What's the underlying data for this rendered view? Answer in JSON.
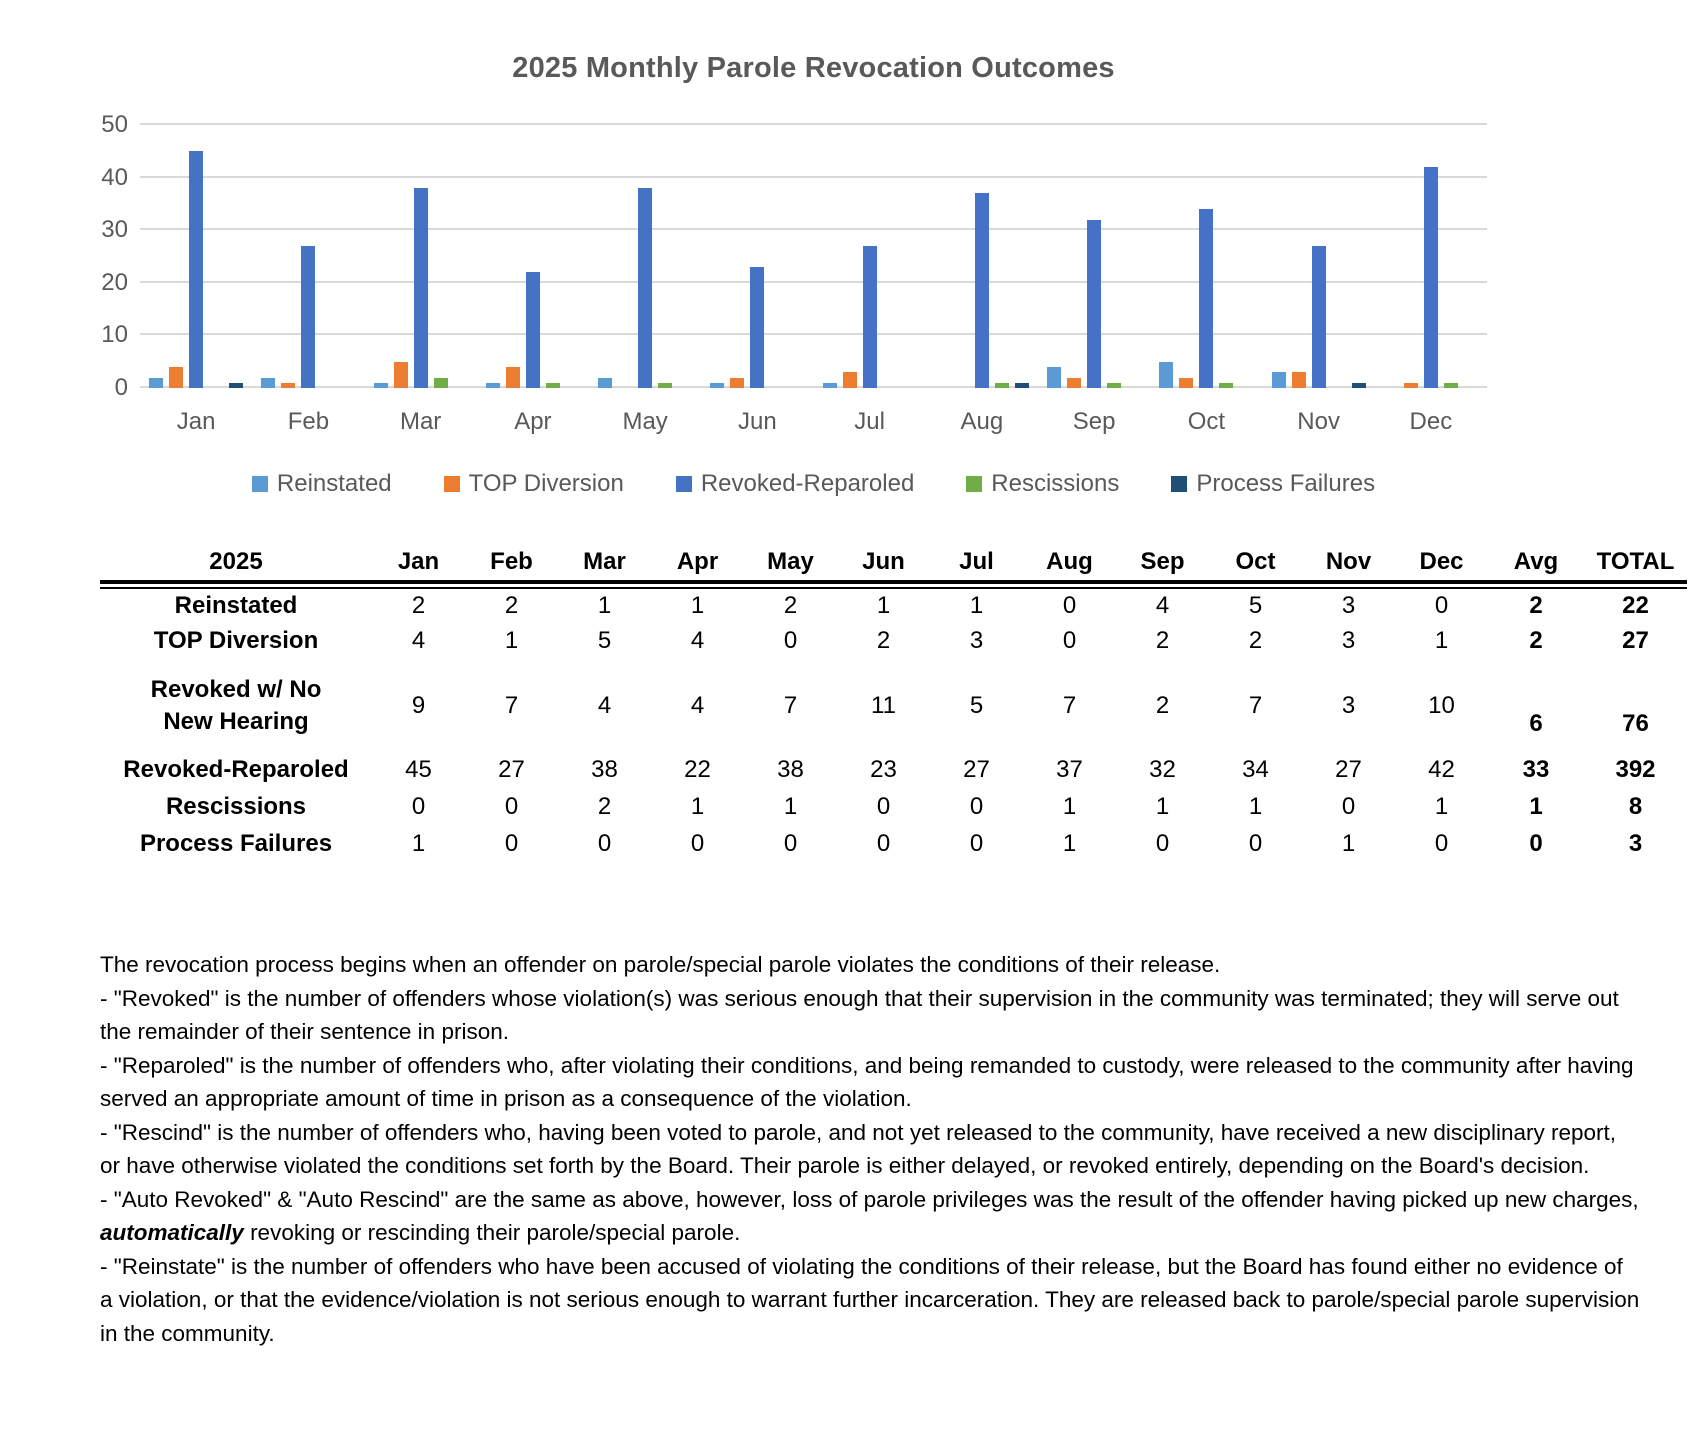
{
  "chart_data": {
    "type": "bar",
    "title": "2025 Monthly Parole Revocation Outcomes",
    "categories": [
      "Jan",
      "Feb",
      "Mar",
      "Apr",
      "May",
      "Jun",
      "Jul",
      "Aug",
      "Sep",
      "Oct",
      "Nov",
      "Dec"
    ],
    "series": [
      {
        "name": "Reinstated",
        "color": "#5B9BD5",
        "values": [
          2,
          2,
          1,
          1,
          2,
          1,
          1,
          0,
          4,
          5,
          3,
          0
        ]
      },
      {
        "name": "TOP Diversion",
        "color": "#ED7D31",
        "values": [
          4,
          1,
          5,
          4,
          0,
          2,
          3,
          0,
          2,
          2,
          3,
          1
        ]
      },
      {
        "name": "Revoked-Reparoled",
        "color": "#4472C4",
        "values": [
          45,
          27,
          38,
          22,
          38,
          23,
          27,
          37,
          32,
          34,
          27,
          42
        ]
      },
      {
        "name": "Rescissions",
        "color": "#70AD47",
        "values": [
          0,
          0,
          2,
          1,
          1,
          0,
          0,
          1,
          1,
          1,
          0,
          1
        ]
      },
      {
        "name": "Process Failures",
        "color": "#1F4E79",
        "values": [
          1,
          0,
          0,
          0,
          0,
          0,
          0,
          1,
          0,
          0,
          1,
          0
        ]
      }
    ],
    "ylim": [
      0,
      50
    ],
    "yticks": [
      0,
      10,
      20,
      30,
      40,
      50
    ],
    "grid": true,
    "legend_position": "bottom",
    "gridline_color": "#d9d9d9",
    "label_color": "#595959"
  },
  "table": {
    "year_header": "2025",
    "month_columns": [
      "Jan",
      "Feb",
      "Mar",
      "Apr",
      "May",
      "Jun",
      "Jul",
      "Aug",
      "Sep",
      "Oct",
      "Nov",
      "Dec"
    ],
    "avg_header": "Avg",
    "total_header": "TOTAL",
    "rows": [
      {
        "label": [
          "Reinstated"
        ],
        "values": [
          2,
          2,
          1,
          1,
          2,
          1,
          1,
          0,
          4,
          5,
          3,
          0
        ],
        "avg": 2,
        "total": 22
      },
      {
        "label": [
          "TOP Diversion"
        ],
        "values": [
          4,
          1,
          5,
          4,
          0,
          2,
          3,
          0,
          2,
          2,
          3,
          1
        ],
        "avg": 2,
        "total": 27
      },
      {
        "label": [
          "Revoked w/ No",
          "New Hearing"
        ],
        "values": [
          9,
          7,
          4,
          4,
          7,
          11,
          5,
          7,
          2,
          7,
          3,
          10
        ],
        "avg": 6,
        "total": 76
      },
      {
        "label": [
          "Revoked-Reparoled"
        ],
        "values": [
          45,
          27,
          38,
          22,
          38,
          23,
          27,
          37,
          32,
          34,
          27,
          42
        ],
        "avg": 33,
        "total": 392
      },
      {
        "label": [
          "Rescissions"
        ],
        "values": [
          0,
          0,
          2,
          1,
          1,
          0,
          0,
          1,
          1,
          1,
          0,
          1
        ],
        "avg": 1,
        "total": 8
      },
      {
        "label": [
          "Process Failures"
        ],
        "values": [
          1,
          0,
          0,
          0,
          0,
          0,
          0,
          1,
          0,
          0,
          1,
          0
        ],
        "avg": 0,
        "total": 3
      }
    ]
  },
  "notes": [
    {
      "text": "The revocation process begins when an offender on parole/special parole violates the conditions of their release."
    },
    {
      "text": "- \"Revoked\" is the number of offenders whose violation(s) was serious enough that their supervision in the community was terminated; they will serve out the remainder of their sentence in prison."
    },
    {
      "text": "- \"Reparoled\" is the number of offenders who, after violating their conditions, and being remanded to custody, were released to the community after having served an appropriate amount of time in prison as a consequence of the violation."
    },
    {
      "text": "- \"Rescind\" is the number of offenders who, having been voted to parole, and not yet released to the community, have received a new disciplinary report, or have otherwise violated the conditions set forth by the Board.  Their parole is either delayed, or revoked entirely, depending on the Board's decision."
    },
    {
      "before": "- \"Auto Revoked\" & \"Auto Rescind\" are the same as above, however, loss of parole privileges was the result of the offender having picked up new charges, ",
      "emphasis": "automatically",
      "after": "  revoking or rescinding their parole/special parole."
    },
    {
      "text": "- \"Reinstate\" is the number of offenders who have been accused of violating the conditions of their release, but the Board has found either no evidence of a violation, or that the evidence/violation is not serious enough to warrant further incarceration.  They are released back to parole/special parole supervision in the community."
    }
  ]
}
